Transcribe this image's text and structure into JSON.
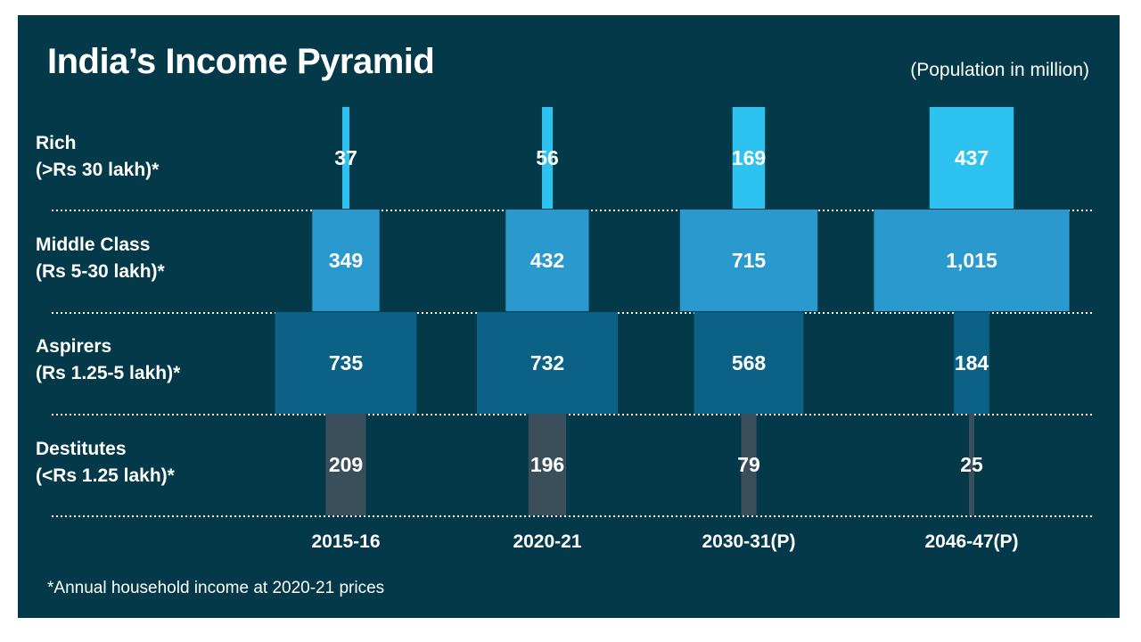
{
  "chart_data": {
    "type": "bar",
    "title": "India’s Income Pyramid",
    "unit_note": "(Population in million)",
    "footnote": "*Annual household income at 2020-21 prices",
    "categories": [
      "2015-16",
      "2020-21",
      "2030-31(P)",
      "2046-47(P)"
    ],
    "series": [
      {
        "name": "Rich",
        "range": "(>Rs 30 lakh)*",
        "color": "#2ec2f0",
        "values": [
          37,
          56,
          169,
          437
        ],
        "labels": [
          "37",
          "56",
          "169",
          "437"
        ]
      },
      {
        "name": "Middle Class",
        "range": "(Rs 5-30 lakh)*",
        "color": "#2a99cd",
        "values": [
          349,
          432,
          715,
          1015
        ],
        "labels": [
          "349",
          "432",
          "715",
          "1,015"
        ]
      },
      {
        "name": "Aspirers",
        "range": "(Rs 1.25-5 lakh)*",
        "color": "#0b6286",
        "values": [
          735,
          732,
          568,
          184
        ],
        "labels": [
          "735",
          "732",
          "568",
          "184"
        ]
      },
      {
        "name": "Destitutes",
        "range": "(<Rs 1.25 lakh)*",
        "color": "#3a4f5b",
        "values": [
          209,
          196,
          79,
          25
        ],
        "labels": [
          "209",
          "196",
          "79",
          "25"
        ]
      }
    ],
    "separator_style": "dotted",
    "background": "#04394a"
  }
}
